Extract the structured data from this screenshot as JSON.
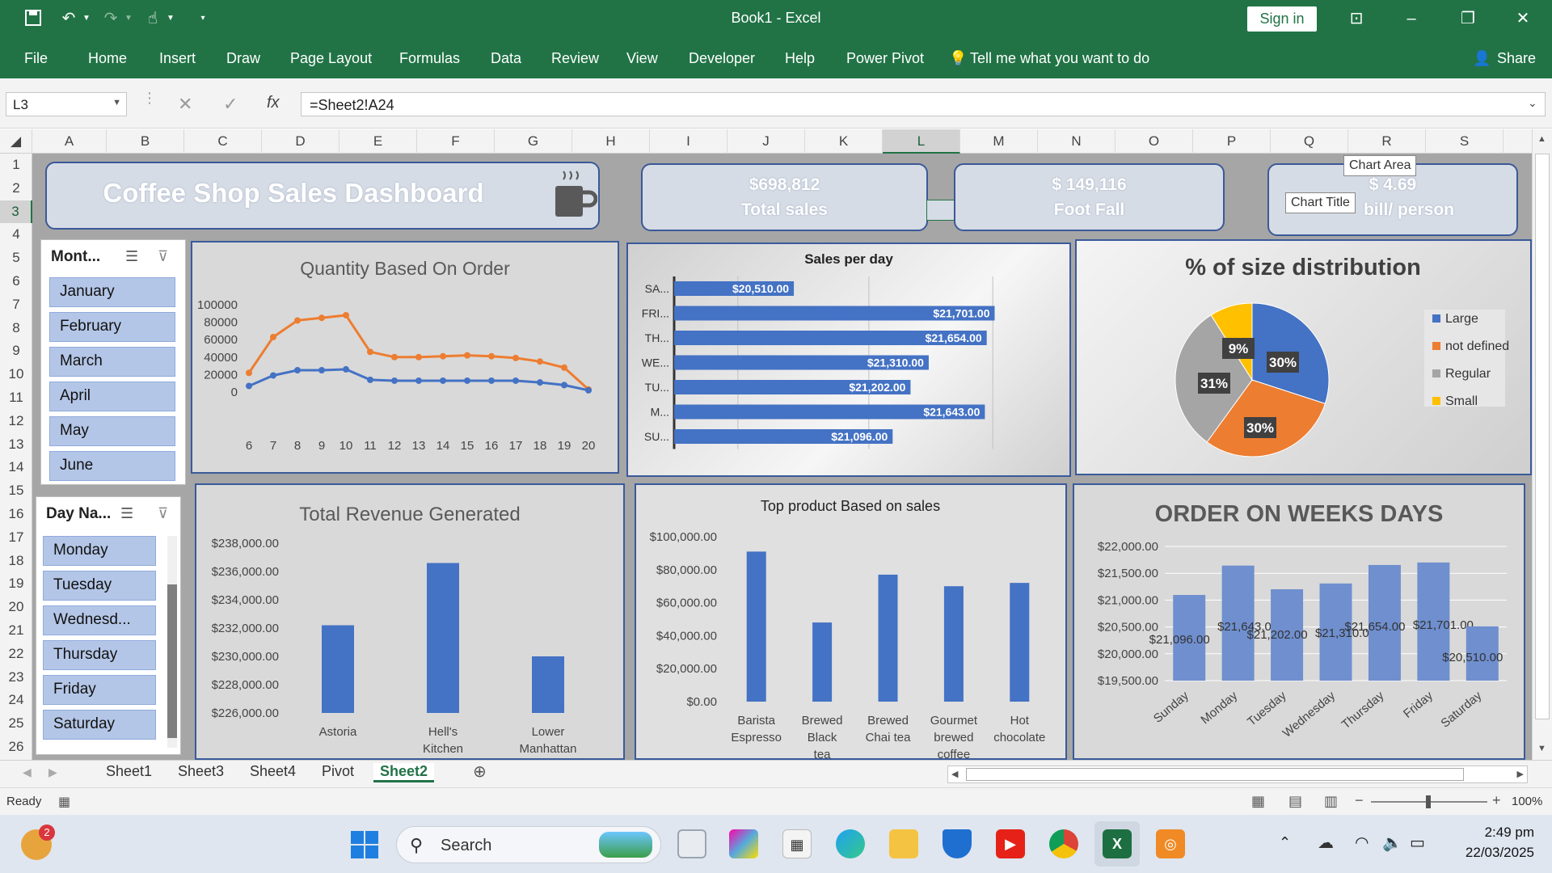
{
  "window": {
    "title": "Book1  -  Excel",
    "sign_in_label": "Sign in",
    "accent": "#217346"
  },
  "menu": [
    {
      "label": "File"
    },
    {
      "label": "Home"
    },
    {
      "label": "Insert"
    },
    {
      "label": "Draw"
    },
    {
      "label": "Page Layout"
    },
    {
      "label": "Formulas"
    },
    {
      "label": "Data"
    },
    {
      "label": "Review"
    },
    {
      "label": "View"
    },
    {
      "label": "Developer"
    },
    {
      "label": "Help"
    },
    {
      "label": "Power Pivot"
    },
    {
      "label": "Tell me what you want to do"
    }
  ],
  "share_label": "Share",
  "formula_bar": {
    "name_box": "L3",
    "formula": "=Sheet2!A24"
  },
  "columns": [
    "A",
    "B",
    "C",
    "D",
    "E",
    "F",
    "G",
    "H",
    "I",
    "J",
    "K",
    "L",
    "M",
    "N",
    "O",
    "P",
    "Q",
    "R",
    "S"
  ],
  "selected_column": "L",
  "rows": [
    "1",
    "2",
    "3",
    "4",
    "5",
    "6",
    "7",
    "8",
    "9",
    "10",
    "11",
    "12",
    "13",
    "14",
    "15",
    "16",
    "17",
    "18",
    "19",
    "20",
    "21",
    "22",
    "23",
    "24",
    "25",
    "26"
  ],
  "selected_row": "3",
  "dashboard": {
    "title": "Coffee Shop Sales Dashboard",
    "kpis": [
      {
        "value": "$698,812",
        "label": "Total sales"
      },
      {
        "value": "$ 149,116",
        "label": "Foot Fall"
      },
      {
        "value": "$ 4.69",
        "label": "bill/ person"
      }
    ],
    "tooltips": {
      "chart_area": "Chart Area",
      "chart_title": "Chart Title"
    },
    "month_slicer": {
      "header": "Mont...",
      "items": [
        "January",
        "February",
        "March",
        "April",
        "May",
        "June"
      ]
    },
    "day_slicer": {
      "header": "Day Na...",
      "items": [
        "Monday",
        "Tuesday",
        "Wednesd...",
        "Thursday",
        "Friday",
        "Saturday"
      ]
    }
  },
  "chart_data": [
    {
      "id": "quantity",
      "type": "line",
      "title": "Quantity Based On Order",
      "x": [
        6,
        7,
        8,
        9,
        10,
        11,
        12,
        13,
        14,
        15,
        16,
        17,
        18,
        19,
        20
      ],
      "ylim": [
        0,
        100000
      ],
      "yticks": [
        "100000",
        "80000",
        "60000",
        "40000",
        "20000",
        "0"
      ],
      "series": [
        {
          "color": "#ed7d31",
          "values": [
            22000,
            63000,
            82000,
            85000,
            88000,
            46000,
            40000,
            40000,
            41000,
            42000,
            41000,
            39000,
            35000,
            28000,
            3000
          ]
        },
        {
          "color": "#4472c4",
          "values": [
            7000,
            19000,
            25000,
            25000,
            26000,
            14000,
            13000,
            13000,
            13000,
            13000,
            13000,
            13000,
            11000,
            8000,
            2000
          ]
        }
      ]
    },
    {
      "id": "sales_per_day",
      "type": "bar",
      "title": "Sales per day",
      "categories": [
        "SA...",
        "FRI...",
        "TH...",
        "WE...",
        "TU...",
        "M...",
        "SU..."
      ],
      "values": [
        20510,
        21701,
        21654,
        21310,
        21202,
        21643,
        21096
      ],
      "labels": [
        "$20,510.00",
        "$21,701.00",
        "$21,654.00",
        "$21,310.00",
        "$21,202.00",
        "$21,643.00",
        "$21,096.00"
      ],
      "xlim": [
        19800,
        21900
      ],
      "color": "#4472c4"
    },
    {
      "id": "size_distribution",
      "type": "pie",
      "title": "% of size distribution",
      "slices": [
        {
          "name": "Large",
          "value": 30,
          "label": "30%",
          "color": "#4472c4"
        },
        {
          "name": "not defined",
          "value": 30,
          "label": "30%",
          "color": "#ed7d31"
        },
        {
          "name": "Regular",
          "value": 31,
          "label": "31%",
          "color": "#a5a5a5"
        },
        {
          "name": "Small",
          "value": 9,
          "label": "9%",
          "color": "#ffc000"
        }
      ],
      "legend": "right"
    },
    {
      "id": "revenue",
      "type": "bar",
      "title": "Total Revenue Generated",
      "categories": [
        "Astoria",
        "Hell's Kitchen",
        "Lower Manhattan"
      ],
      "values": [
        232200,
        236600,
        230000
      ],
      "ylim": [
        226000,
        238000
      ],
      "yticks": [
        "$238,000.00",
        "$236,000.00",
        "$234,000.00",
        "$232,000.00",
        "$230,000.00",
        "$228,000.00",
        "$226,000.00"
      ],
      "color": "#4472c4"
    },
    {
      "id": "top_product",
      "type": "bar",
      "title": "Top product Based on sales",
      "categories": [
        "Barista Espresso",
        "Brewed Black tea",
        "Brewed Chai tea",
        "Gourmet brewed coffee",
        "Hot chocolate"
      ],
      "values": [
        91000,
        48000,
        77000,
        70000,
        72000
      ],
      "ylim": [
        0,
        100000
      ],
      "yticks": [
        "$100,000.00",
        "$80,000.00",
        "$60,000.00",
        "$40,000.00",
        "$20,000.00",
        "$0.00"
      ],
      "color": "#4472c4"
    },
    {
      "id": "weekdays",
      "type": "bar",
      "title": "ORDER ON WEEKS DAYS",
      "categories": [
        "Sunday",
        "Monday",
        "Tuesday",
        "Wednesday",
        "Thursday",
        "Friday",
        "Saturday"
      ],
      "values": [
        21096,
        21643,
        21202,
        21310,
        21654,
        21701,
        20510
      ],
      "labels": [
        "$21,096.00",
        "$21,643.00",
        "$21,202.00",
        "$21,310.00",
        "$21,654.00",
        "$21,701.00",
        "$20,510.00"
      ],
      "ylim": [
        19500,
        22000
      ],
      "yticks": [
        "$22,000.00",
        "$21,500.00",
        "$21,000.00",
        "$20,500.00",
        "$20,000.00",
        "$19,500.00"
      ],
      "color": "#6f8fcf"
    }
  ],
  "sheets": [
    {
      "label": "Sheet1"
    },
    {
      "label": "Sheet3"
    },
    {
      "label": "Sheet4"
    },
    {
      "label": "Pivot"
    },
    {
      "label": "Sheet2"
    }
  ],
  "active_sheet": "Sheet2",
  "status": {
    "ready": "Ready",
    "zoom": "100%"
  },
  "taskbar": {
    "search_label": "Search",
    "notification_count": "2",
    "time": "2:49 pm",
    "date": "22/03/2025"
  }
}
